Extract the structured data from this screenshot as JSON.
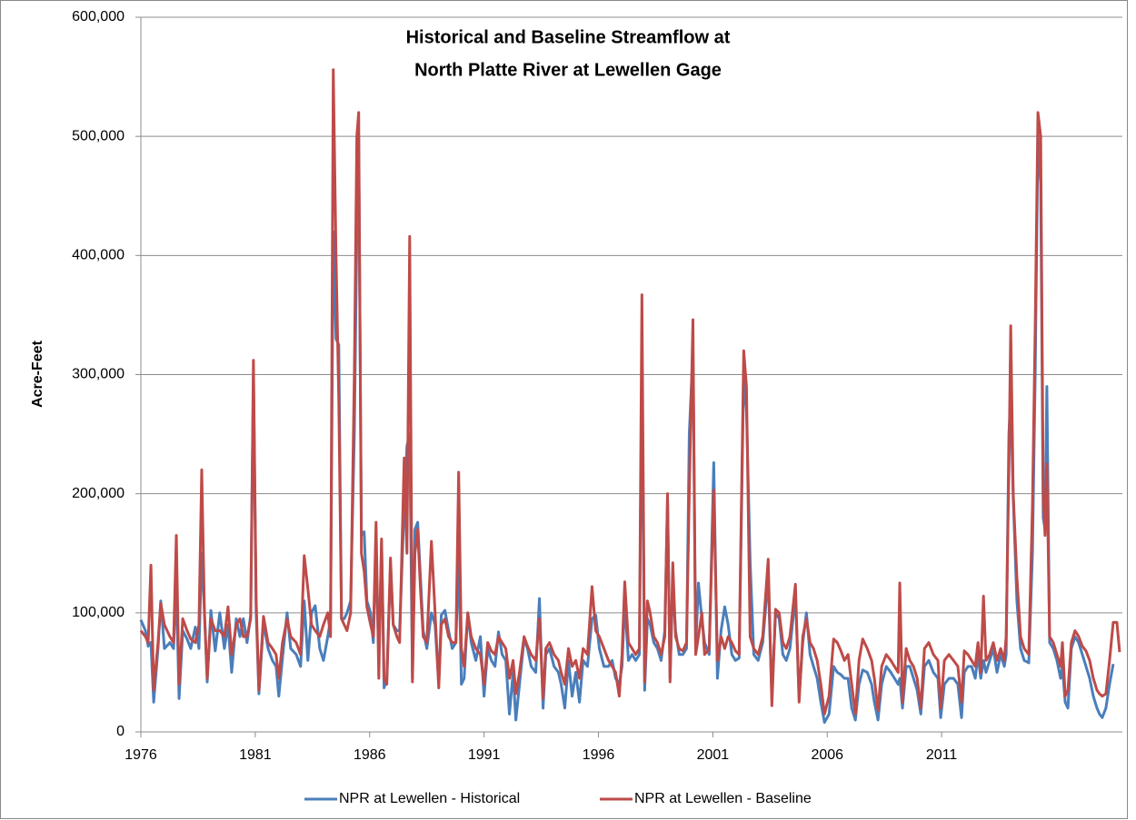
{
  "chart_data": {
    "type": "line",
    "title": [
      "Historical and Baseline Streamflow at",
      "North Platte River at Lewellen Gage"
    ],
    "y_label": "Acre-Feet",
    "x": [
      1976.0,
      1976.2,
      1976.32,
      1976.44,
      1976.56,
      1976.75,
      1976.87,
      1977.03,
      1977.27,
      1977.43,
      1977.55,
      1977.67,
      1977.83,
      1978.02,
      1978.18,
      1978.38,
      1978.54,
      1978.66,
      1978.78,
      1978.9,
      1979.06,
      1979.25,
      1979.45,
      1979.65,
      1979.81,
      1979.97,
      1980.17,
      1980.33,
      1980.48,
      1980.64,
      1980.8,
      1980.92,
      1981.04,
      1981.16,
      1981.36,
      1981.56,
      1981.75,
      1981.91,
      1982.03,
      1982.19,
      1982.39,
      1982.55,
      1982.79,
      1982.98,
      1983.14,
      1983.3,
      1983.46,
      1983.62,
      1983.82,
      1983.98,
      1984.17,
      1984.29,
      1984.41,
      1984.53,
      1984.65,
      1984.77,
      1984.89,
      1985.01,
      1985.17,
      1985.33,
      1985.44,
      1985.52,
      1985.64,
      1985.76,
      1985.88,
      1986.04,
      1986.16,
      1986.28,
      1986.4,
      1986.52,
      1986.63,
      1986.75,
      1986.91,
      1987.03,
      1987.19,
      1987.31,
      1987.51,
      1987.63,
      1987.75,
      1987.87,
      1987.98,
      1988.1,
      1988.22,
      1988.34,
      1988.5,
      1988.7,
      1988.86,
      1989.02,
      1989.13,
      1989.29,
      1989.45,
      1989.61,
      1989.77,
      1989.89,
      1990.01,
      1990.13,
      1990.29,
      1990.44,
      1990.64,
      1990.84,
      1991.0,
      1991.16,
      1991.32,
      1991.48,
      1991.63,
      1991.79,
      1991.95,
      1992.11,
      1992.27,
      1992.39,
      1992.55,
      1992.75,
      1992.9,
      1993.06,
      1993.26,
      1993.42,
      1993.58,
      1993.7,
      1993.86,
      1994.06,
      1994.25,
      1994.37,
      1994.53,
      1994.69,
      1994.85,
      1995.01,
      1995.17,
      1995.33,
      1995.52,
      1995.72,
      1995.88,
      1996.04,
      1996.24,
      1996.44,
      1996.6,
      1996.75,
      1996.91,
      1997.03,
      1997.15,
      1997.31,
      1997.47,
      1997.63,
      1997.79,
      1997.9,
      1998.02,
      1998.14,
      1998.26,
      1998.42,
      1998.58,
      1998.74,
      1998.9,
      1999.02,
      1999.13,
      1999.25,
      1999.37,
      1999.53,
      1999.69,
      1999.85,
      1999.97,
      2000.13,
      2000.25,
      2000.37,
      2000.52,
      2000.64,
      2000.84,
      2001.04,
      2001.2,
      2001.36,
      2001.52,
      2001.67,
      2001.83,
      2001.99,
      2002.15,
      2002.35,
      2002.47,
      2002.63,
      2002.79,
      2002.98,
      2003.18,
      2003.42,
      2003.58,
      2003.74,
      2003.9,
      2004.06,
      2004.21,
      2004.37,
      2004.61,
      2004.77,
      2004.93,
      2005.09,
      2005.25,
      2005.4,
      2005.56,
      2005.72,
      2005.88,
      2006.08,
      2006.28,
      2006.44,
      2006.6,
      2006.75,
      2006.91,
      2007.07,
      2007.23,
      2007.39,
      2007.55,
      2007.75,
      2007.94,
      2008.06,
      2008.22,
      2008.38,
      2008.58,
      2008.78,
      2008.94,
      2009.1,
      2009.17,
      2009.29,
      2009.45,
      2009.61,
      2009.77,
      2009.93,
      2010.09,
      2010.25,
      2010.44,
      2010.64,
      2010.84,
      2010.96,
      2011.12,
      2011.32,
      2011.52,
      2011.71,
      2011.87,
      2011.99,
      2012.15,
      2012.31,
      2012.47,
      2012.59,
      2012.71,
      2012.83,
      2012.94,
      2013.1,
      2013.26,
      2013.42,
      2013.58,
      2013.74,
      2013.82,
      2013.94,
      2014.02,
      2014.13,
      2014.29,
      2014.45,
      2014.61,
      2014.81,
      2014.97,
      2015.09,
      2015.21,
      2015.33,
      2015.44,
      2015.52,
      2015.6,
      2015.72,
      2015.88,
      2016.04,
      2016.2,
      2016.28,
      2016.4,
      2016.52,
      2016.67,
      2016.83,
      2016.99,
      2017.15,
      2017.31,
      2017.47,
      2017.63,
      2017.79,
      2017.9,
      2018.02,
      2018.18,
      2018.34,
      2018.5,
      2018.66,
      2018.78
    ],
    "series": [
      {
        "name": "NPR at Lewellen - Historical",
        "color": "#4a7ebb",
        "values": [
          94000,
          85000,
          72000,
          75000,
          25000,
          70000,
          110000,
          70000,
          75000,
          70000,
          125000,
          28000,
          85000,
          78000,
          70000,
          88000,
          70000,
          150000,
          100000,
          42000,
          102000,
          68000,
          100000,
          70000,
          90000,
          50000,
          95000,
          80000,
          95000,
          75000,
          98000,
          300000,
          100000,
          32000,
          92000,
          70000,
          60000,
          55000,
          30000,
          62000,
          100000,
          70000,
          65000,
          55000,
          110000,
          60000,
          100000,
          106000,
          70000,
          60000,
          80000,
          95000,
          420000,
          330000,
          325000,
          95000,
          95000,
          100000,
          110000,
          250000,
          420000,
          500000,
          165000,
          168000,
          110000,
          100000,
          75000,
          150000,
          62000,
          160000,
          37000,
          45000,
          140000,
          90000,
          85000,
          85000,
          190000,
          240000,
          250000,
          45000,
          170000,
          176000,
          130000,
          85000,
          70000,
          100000,
          90000,
          40000,
          98000,
          102000,
          85000,
          70000,
          75000,
          150000,
          40000,
          45000,
          100000,
          75000,
          60000,
          80000,
          30000,
          70000,
          60000,
          55000,
          84000,
          65000,
          60000,
          15000,
          50000,
          10000,
          40000,
          78000,
          70000,
          55000,
          50000,
          112000,
          20000,
          65000,
          70000,
          55000,
          50000,
          40000,
          20000,
          60000,
          30000,
          50000,
          25000,
          60000,
          55000,
          95000,
          98000,
          70000,
          55000,
          55000,
          60000,
          45000,
          40000,
          55000,
          110000,
          60000,
          65000,
          60000,
          65000,
          310000,
          35000,
          95000,
          90000,
          75000,
          70000,
          60000,
          85000,
          195000,
          45000,
          125000,
          85000,
          65000,
          65000,
          70000,
          250000,
          320000,
          70000,
          125000,
          95000,
          75000,
          65000,
          226000,
          45000,
          85000,
          105000,
          90000,
          65000,
          60000,
          62000,
          300000,
          270000,
          143000,
          65000,
          60000,
          75000,
          130000,
          28000,
          100000,
          95000,
          65000,
          60000,
          70000,
          115000,
          30000,
          75000,
          100000,
          65000,
          55000,
          45000,
          25000,
          8000,
          15000,
          55000,
          50000,
          48000,
          45000,
          45000,
          20000,
          10000,
          40000,
          52000,
          50000,
          40000,
          25000,
          10000,
          40000,
          55000,
          50000,
          45000,
          40000,
          45000,
          20000,
          55000,
          55000,
          45000,
          35000,
          15000,
          55000,
          60000,
          50000,
          45000,
          12000,
          40000,
          45000,
          45000,
          40000,
          12000,
          50000,
          55000,
          55000,
          45000,
          65000,
          45000,
          60000,
          50000,
          60000,
          70000,
          50000,
          65000,
          55000,
          65000,
          250000,
          280000,
          196000,
          110000,
          70000,
          60000,
          58000,
          150000,
          300000,
          500000,
          460000,
          180000,
          170000,
          290000,
          75000,
          70000,
          60000,
          45000,
          55000,
          25000,
          20000,
          70000,
          80000,
          75000,
          65000,
          55000,
          45000,
          30000,
          20000,
          15000,
          12000,
          20000,
          40000,
          57000,
          null,
          null
        ]
      },
      {
        "name": "NPR at Lewellen - Baseline",
        "color": "#be4b48",
        "values": [
          85000,
          80000,
          75000,
          140000,
          35000,
          75000,
          108000,
          90000,
          80000,
          75000,
          165000,
          40000,
          95000,
          85000,
          78000,
          75000,
          90000,
          220000,
          100000,
          45000,
          95000,
          85000,
          85000,
          80000,
          105000,
          65000,
          90000,
          95000,
          80000,
          80000,
          95000,
          312000,
          110000,
          35000,
          97000,
          75000,
          70000,
          65000,
          45000,
          75000,
          95000,
          80000,
          75000,
          65000,
          148000,
          120000,
          90000,
          85000,
          80000,
          90000,
          100000,
          80000,
          556000,
          400000,
          280000,
          95000,
          90000,
          85000,
          100000,
          300000,
          500000,
          520000,
          150000,
          135000,
          105000,
          90000,
          80000,
          176000,
          45000,
          162000,
          45000,
          40000,
          146000,
          90000,
          80000,
          75000,
          230000,
          150000,
          416000,
          42000,
          150000,
          170000,
          120000,
          80000,
          75000,
          160000,
          100000,
          37000,
          90000,
          95000,
          80000,
          75000,
          75000,
          218000,
          70000,
          55000,
          100000,
          80000,
          70000,
          65000,
          40000,
          75000,
          68000,
          65000,
          80000,
          75000,
          70000,
          45000,
          60000,
          32000,
          50000,
          80000,
          72000,
          65000,
          60000,
          95000,
          28000,
          70000,
          75000,
          65000,
          60000,
          50000,
          40000,
          70000,
          55000,
          60000,
          45000,
          70000,
          65000,
          122000,
          85000,
          80000,
          70000,
          60000,
          55000,
          50000,
          30000,
          65000,
          126000,
          75000,
          70000,
          65000,
          70000,
          367000,
          42000,
          110000,
          100000,
          80000,
          75000,
          65000,
          80000,
          200000,
          42000,
          142000,
          80000,
          70000,
          68000,
          75000,
          200000,
          346000,
          65000,
          80000,
          100000,
          65000,
          70000,
          203000,
          60000,
          80000,
          70000,
          80000,
          75000,
          68000,
          65000,
          320000,
          290000,
          80000,
          70000,
          65000,
          80000,
          145000,
          22000,
          103000,
          100000,
          75000,
          70000,
          80000,
          124000,
          25000,
          80000,
          95000,
          75000,
          70000,
          60000,
          40000,
          15000,
          30000,
          78000,
          75000,
          68000,
          60000,
          65000,
          40000,
          15000,
          60000,
          78000,
          70000,
          60000,
          45000,
          18000,
          55000,
          65000,
          60000,
          55000,
          50000,
          125000,
          25000,
          70000,
          60000,
          55000,
          45000,
          20000,
          70000,
          75000,
          65000,
          60000,
          20000,
          60000,
          65000,
          60000,
          55000,
          25000,
          68000,
          65000,
          60000,
          55000,
          75000,
          50000,
          114000,
          60000,
          65000,
          75000,
          60000,
          70000,
          60000,
          80000,
          220000,
          341000,
          200000,
          130000,
          80000,
          70000,
          65000,
          190000,
          340000,
          520000,
          500000,
          200000,
          165000,
          225000,
          80000,
          75000,
          65000,
          55000,
          75000,
          30000,
          35000,
          75000,
          85000,
          80000,
          72000,
          68000,
          60000,
          45000,
          35000,
          32000,
          30000,
          32000,
          60000,
          92000,
          92000,
          67000
        ]
      }
    ],
    "xlim": [
      1976,
      2018.9
    ],
    "xticks": [
      1976,
      1981,
      1986,
      1991,
      1996,
      2001,
      2006,
      2011
    ],
    "ylim": [
      0,
      600000
    ],
    "yticks": [
      0,
      {
        "value": 100000,
        "label": "100,000"
      },
      {
        "value": 200000,
        "label": "200,000"
      },
      {
        "value": 300000,
        "label": "300,000"
      },
      {
        "value": 400000,
        "label": "400,000"
      },
      {
        "value": 500000,
        "label": "500,000"
      },
      {
        "value": 600000,
        "label": "600,000"
      }
    ],
    "grid": true,
    "legend": "bottom"
  }
}
